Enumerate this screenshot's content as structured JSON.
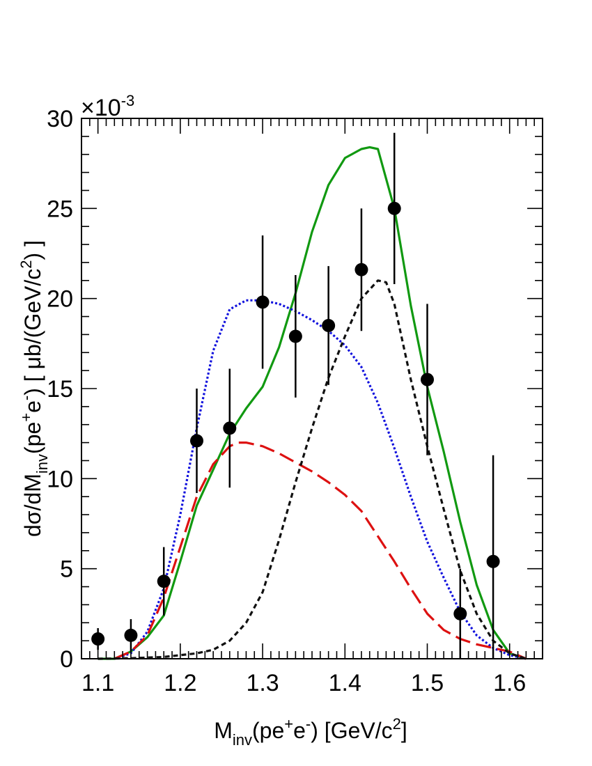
{
  "chart_data": {
    "type": "scatter",
    "title": "",
    "xlabel": "M_inv(pe+e-) [GeV/c2]",
    "ylabel": "dσ/dM_inv(pe+e-) [ μb/(GeV/c2) ]",
    "y_multiplier": "×10-3",
    "xlim": [
      1.08,
      1.64
    ],
    "ylim": [
      0,
      0.03
    ],
    "x_ticks": [
      1.1,
      1.2,
      1.3,
      1.4,
      1.5,
      1.6
    ],
    "x_tick_labels": [
      "1.1",
      "1.2",
      "1.3",
      "1.4",
      "1.5",
      "1.6"
    ],
    "y_ticks": [
      0,
      0.005,
      0.01,
      0.015,
      0.02,
      0.025,
      0.03
    ],
    "y_tick_labels": [
      "0",
      "5",
      "10",
      "15",
      "20",
      "25",
      "30"
    ],
    "grid": false,
    "legend": "none",
    "points": {
      "x": [
        1.1,
        1.14,
        1.18,
        1.22,
        1.26,
        1.3,
        1.34,
        1.38,
        1.42,
        1.46,
        1.5,
        1.54,
        1.58
      ],
      "y": [
        0.0011,
        0.0013,
        0.0043,
        0.0121,
        0.0128,
        0.0198,
        0.0179,
        0.0185,
        0.0216,
        0.025,
        0.0155,
        0.0025,
        0.0054
      ],
      "err": [
        0.0006,
        0.0009,
        0.0019,
        0.0029,
        0.0033,
        0.0037,
        0.0034,
        0.0033,
        0.0034,
        0.0042,
        0.0042,
        0.0025,
        0.0059
      ],
      "color": "#000000"
    },
    "series": [
      {
        "style": "solid",
        "color": "#119911",
        "x": [
          1.1,
          1.12,
          1.14,
          1.16,
          1.18,
          1.2,
          1.22,
          1.24,
          1.26,
          1.28,
          1.3,
          1.32,
          1.34,
          1.36,
          1.38,
          1.4,
          1.42,
          1.43,
          1.44,
          1.46,
          1.48,
          1.5,
          1.52,
          1.54,
          1.56,
          1.58,
          1.6,
          1.62
        ],
        "y": [
          0.0,
          0.0,
          0.0004,
          0.0012,
          0.0024,
          0.0054,
          0.0085,
          0.0105,
          0.0125,
          0.0139,
          0.0151,
          0.0173,
          0.0203,
          0.0237,
          0.0263,
          0.0278,
          0.0283,
          0.0284,
          0.0283,
          0.025,
          0.0196,
          0.0151,
          0.0115,
          0.0076,
          0.0041,
          0.0016,
          0.0003,
          0.0
        ]
      },
      {
        "style": "dotted",
        "color": "#1111dd",
        "x": [
          1.12,
          1.14,
          1.16,
          1.18,
          1.2,
          1.22,
          1.24,
          1.26,
          1.28,
          1.3,
          1.32,
          1.34,
          1.36,
          1.38,
          1.4,
          1.42,
          1.44,
          1.46,
          1.48,
          1.5,
          1.52,
          1.54,
          1.56,
          1.58,
          1.6,
          1.62
        ],
        "y": [
          0.0,
          0.0003,
          0.0015,
          0.0039,
          0.008,
          0.0128,
          0.0171,
          0.0194,
          0.0199,
          0.0199,
          0.0197,
          0.0193,
          0.0188,
          0.0182,
          0.0174,
          0.0162,
          0.0142,
          0.0117,
          0.009,
          0.0065,
          0.0045,
          0.0026,
          0.0013,
          0.0006,
          0.0002,
          0.0
        ]
      },
      {
        "style": "longdash",
        "color": "#dd1111",
        "x": [
          1.12,
          1.14,
          1.16,
          1.18,
          1.2,
          1.22,
          1.24,
          1.26,
          1.27,
          1.28,
          1.3,
          1.32,
          1.34,
          1.36,
          1.38,
          1.4,
          1.42,
          1.44,
          1.46,
          1.48,
          1.5,
          1.52,
          1.54,
          1.56,
          1.58,
          1.6,
          1.62
        ],
        "y": [
          0.0,
          0.0004,
          0.0013,
          0.0034,
          0.0062,
          0.009,
          0.0108,
          0.0118,
          0.012,
          0.012,
          0.0118,
          0.0114,
          0.0109,
          0.0104,
          0.0098,
          0.0091,
          0.0082,
          0.0068,
          0.0054,
          0.0039,
          0.0025,
          0.0016,
          0.0011,
          0.0008,
          0.0006,
          0.0004,
          0.0
        ]
      },
      {
        "style": "dashed",
        "color": "#111111",
        "x": [
          1.1,
          1.14,
          1.18,
          1.22,
          1.24,
          1.26,
          1.28,
          1.3,
          1.32,
          1.34,
          1.36,
          1.38,
          1.4,
          1.42,
          1.44,
          1.45,
          1.46,
          1.48,
          1.5,
          1.52,
          1.54,
          1.56,
          1.58,
          1.6,
          1.62
        ],
        "y": [
          0.0,
          3e-05,
          0.0001,
          0.0003,
          0.0005,
          0.001,
          0.002,
          0.0037,
          0.0066,
          0.0098,
          0.0128,
          0.0156,
          0.0179,
          0.02,
          0.021,
          0.0209,
          0.0197,
          0.0155,
          0.0118,
          0.0083,
          0.0049,
          0.0025,
          0.001,
          0.0003,
          0.0
        ]
      }
    ]
  }
}
